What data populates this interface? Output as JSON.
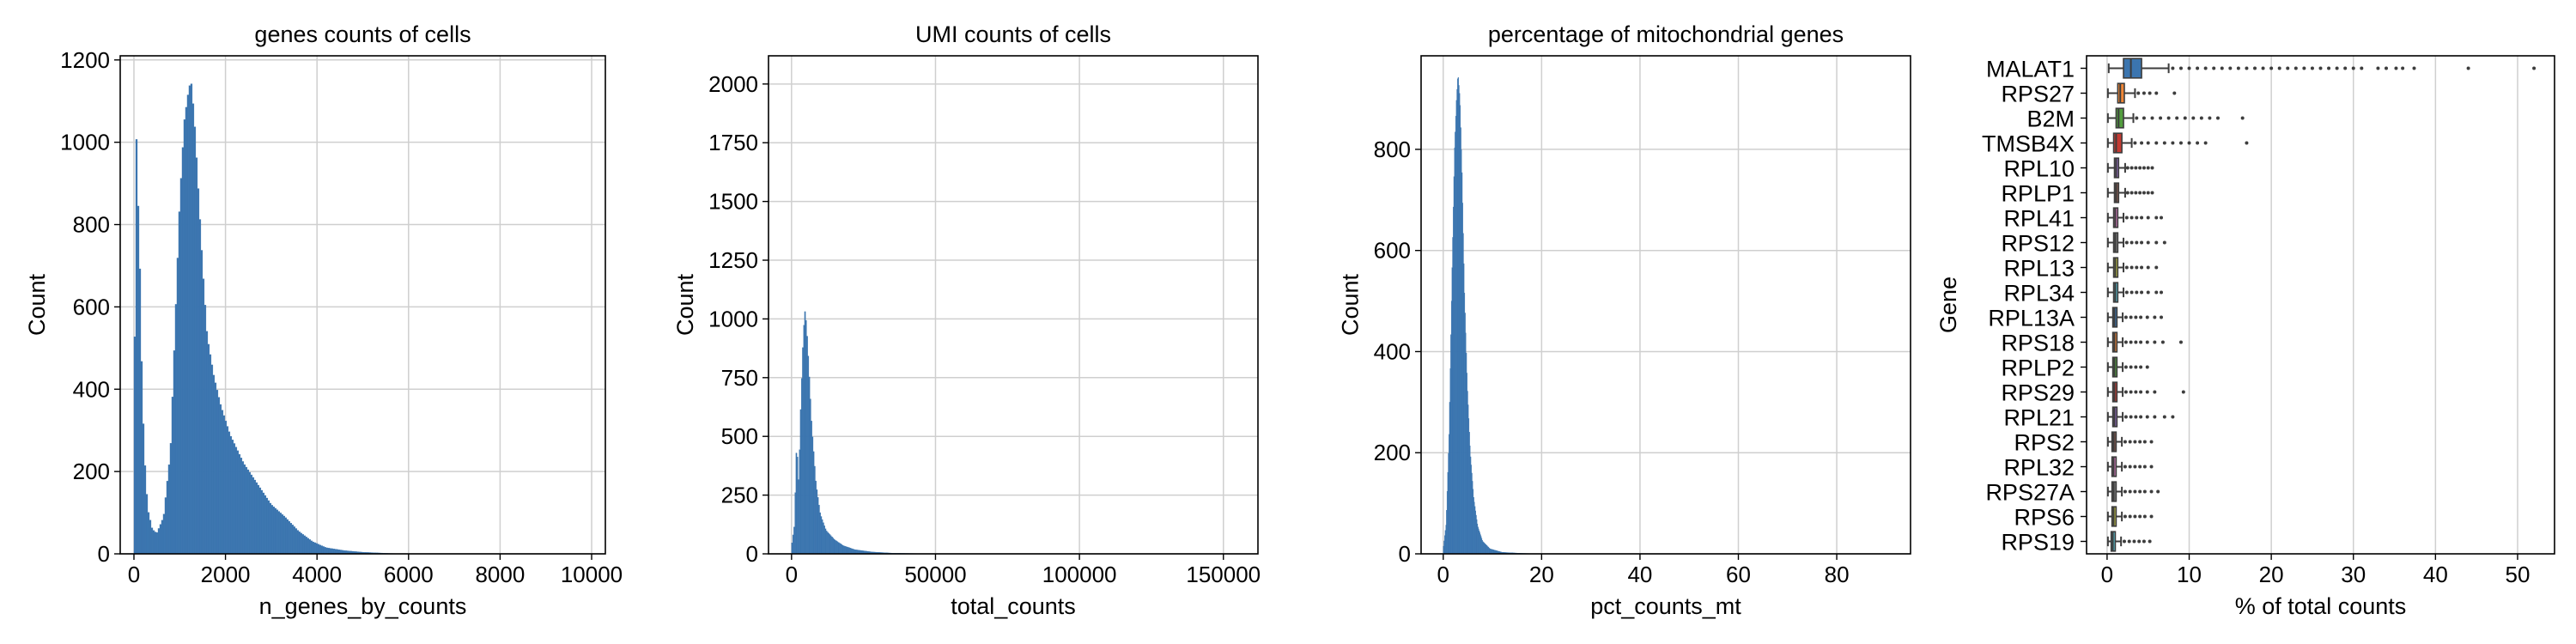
{
  "chart_data": [
    {
      "type": "histogram",
      "title": "genes counts of cells",
      "xlabel": "n_genes_by_counts",
      "ylabel": "Count",
      "xlim": [
        -300,
        10300
      ],
      "ylim": [
        0,
        1210
      ],
      "xticks": [
        0,
        2000,
        4000,
        6000,
        8000,
        10000
      ],
      "yticks": [
        0,
        200,
        400,
        600,
        800,
        1000,
        1200
      ],
      "grid": true,
      "color": "#3b75af",
      "profile": [
        [
          0,
          40
        ],
        [
          40,
          1080
        ],
        [
          80,
          900
        ],
        [
          130,
          700
        ],
        [
          180,
          400
        ],
        [
          230,
          240
        ],
        [
          300,
          110
        ],
        [
          400,
          60
        ],
        [
          500,
          50
        ],
        [
          650,
          90
        ],
        [
          800,
          250
        ],
        [
          900,
          550
        ],
        [
          1000,
          850
        ],
        [
          1100,
          1050
        ],
        [
          1200,
          1130
        ],
        [
          1250,
          1150
        ],
        [
          1320,
          1060
        ],
        [
          1400,
          900
        ],
        [
          1500,
          700
        ],
        [
          1600,
          530
        ],
        [
          1750,
          430
        ],
        [
          1900,
          360
        ],
        [
          2100,
          290
        ],
        [
          2400,
          220
        ],
        [
          2700,
          170
        ],
        [
          3000,
          120
        ],
        [
          3300,
          90
        ],
        [
          3600,
          55
        ],
        [
          3900,
          30
        ],
        [
          4200,
          15
        ],
        [
          4600,
          8
        ],
        [
          5000,
          4
        ],
        [
          5600,
          1
        ],
        [
          6000,
          0
        ]
      ]
    },
    {
      "type": "histogram",
      "title": "UMI counts of cells",
      "xlabel": "total_counts",
      "ylabel": "Count",
      "xlim": [
        -8000,
        162000
      ],
      "ylim": [
        0,
        2120
      ],
      "xticks": [
        0,
        50000,
        100000,
        150000
      ],
      "yticks": [
        0,
        250,
        500,
        750,
        1000,
        1250,
        1500,
        1750,
        2000
      ],
      "grid": true,
      "color": "#3b75af",
      "profile": [
        [
          0,
          30
        ],
        [
          1000,
          120
        ],
        [
          1800,
          480
        ],
        [
          2500,
          300
        ],
        [
          3200,
          620
        ],
        [
          4000,
          900
        ],
        [
          4600,
          1040
        ],
        [
          5200,
          980
        ],
        [
          6000,
          800
        ],
        [
          7000,
          550
        ],
        [
          8500,
          300
        ],
        [
          10000,
          170
        ],
        [
          12000,
          100
        ],
        [
          15000,
          60
        ],
        [
          18000,
          35
        ],
        [
          22000,
          18
        ],
        [
          28000,
          8
        ],
        [
          35000,
          3
        ],
        [
          45000,
          1
        ],
        [
          60000,
          0
        ]
      ]
    },
    {
      "type": "histogram",
      "title": "percentage of mitochondrial genes",
      "xlabel": "pct_counts_mt",
      "ylabel": "Count",
      "xlim": [
        -4.5,
        95
      ],
      "ylim": [
        0,
        985
      ],
      "xticks": [
        0,
        20,
        40,
        60,
        80
      ],
      "yticks": [
        0,
        200,
        400,
        600,
        800
      ],
      "grid": true,
      "color": "#3b75af",
      "profile": [
        [
          0,
          10
        ],
        [
          0.6,
          60
        ],
        [
          1.2,
          240
        ],
        [
          1.8,
          560
        ],
        [
          2.3,
          800
        ],
        [
          2.7,
          900
        ],
        [
          3.0,
          950
        ],
        [
          3.4,
          900
        ],
        [
          3.8,
          760
        ],
        [
          4.3,
          520
        ],
        [
          4.9,
          330
        ],
        [
          5.5,
          200
        ],
        [
          6.2,
          110
        ],
        [
          7.0,
          55
        ],
        [
          8.0,
          25
        ],
        [
          9.5,
          10
        ],
        [
          12,
          3
        ],
        [
          16,
          1
        ],
        [
          20,
          0
        ]
      ]
    },
    {
      "type": "box",
      "title": "",
      "xlabel": "% of total counts",
      "ylabel": "Gene",
      "xlim": [
        -2.5,
        54.5
      ],
      "xticks": [
        0,
        10,
        20,
        30,
        40,
        50
      ],
      "grid": true,
      "genes": [
        {
          "name": "MALAT1",
          "color": "#3b75af",
          "whislo": 0.2,
          "q1": 2.0,
          "med": 2.9,
          "q3": 4.2,
          "whishi": 7.5,
          "fliers": [
            8,
            9,
            10,
            11,
            12,
            13,
            14,
            15,
            16,
            17,
            18,
            19,
            20,
            21,
            22,
            23,
            24,
            25,
            26,
            27,
            28,
            29,
            30,
            31,
            33,
            34,
            35.2,
            36,
            37.4,
            44,
            52
          ]
        },
        {
          "name": "RPS27",
          "color": "#ef8636",
          "whislo": 0.1,
          "q1": 1.3,
          "med": 1.6,
          "q3": 2.1,
          "whishi": 3.4,
          "fliers": [
            3.8,
            4.5,
            5.2,
            6.0,
            8.2
          ]
        },
        {
          "name": "B2M",
          "color": "#529e3e",
          "whislo": 0.1,
          "q1": 1.1,
          "med": 1.4,
          "q3": 2.0,
          "whishi": 3.2,
          "fliers": [
            3.6,
            4.5,
            5.5,
            6.5,
            7.5,
            8.5,
            9.5,
            10.5,
            11.5,
            12.5,
            13.5,
            16.5
          ]
        },
        {
          "name": "TMSB4X",
          "color": "#c53a32",
          "whislo": 0.1,
          "q1": 0.8,
          "med": 1.1,
          "q3": 1.8,
          "whishi": 3.0,
          "fliers": [
            3.4,
            4.2,
            5.0,
            6.0,
            7.0,
            8.0,
            9.0,
            10.0,
            11.0,
            12.0,
            17.0
          ]
        },
        {
          "name": "RPL10",
          "color": "#8d69b8",
          "whislo": 0.1,
          "q1": 0.9,
          "med": 1.1,
          "q3": 1.4,
          "whishi": 2.2,
          "fliers": [
            2.5,
            3.0,
            3.5,
            4.0,
            4.5,
            5.0,
            5.5
          ]
        },
        {
          "name": "RPLP1",
          "color": "#84584e",
          "whislo": 0.1,
          "q1": 0.9,
          "med": 1.1,
          "q3": 1.4,
          "whishi": 2.2,
          "fliers": [
            2.5,
            3.0,
            3.5,
            4.0,
            4.5,
            5.0,
            5.5
          ]
        },
        {
          "name": "RPL41",
          "color": "#d57dbe",
          "whislo": 0.1,
          "q1": 0.8,
          "med": 1.0,
          "q3": 1.3,
          "whishi": 2.0,
          "fliers": [
            2.4,
            3.0,
            3.6,
            4.2,
            5.0,
            6.0,
            6.6
          ]
        },
        {
          "name": "RPS12",
          "color": "#7f7f7f",
          "whislo": 0.1,
          "q1": 0.8,
          "med": 1.0,
          "q3": 1.3,
          "whishi": 2.0,
          "fliers": [
            2.4,
            3.0,
            3.6,
            4.2,
            5.0,
            6.0,
            7.0
          ]
        },
        {
          "name": "RPL13",
          "color": "#bcbd45",
          "whislo": 0.1,
          "q1": 0.8,
          "med": 1.0,
          "q3": 1.3,
          "whishi": 2.0,
          "fliers": [
            2.4,
            3.0,
            3.6,
            4.2,
            5.0,
            6.0
          ]
        },
        {
          "name": "RPL34",
          "color": "#58bbcc",
          "whislo": 0.1,
          "q1": 0.8,
          "med": 1.0,
          "q3": 1.3,
          "whishi": 2.0,
          "fliers": [
            2.4,
            3.0,
            3.6,
            4.2,
            5.0,
            6.0,
            6.6
          ]
        },
        {
          "name": "RPL13A",
          "color": "#3b75af",
          "whislo": 0.1,
          "q1": 0.7,
          "med": 0.9,
          "q3": 1.2,
          "whishi": 1.9,
          "fliers": [
            2.3,
            2.9,
            3.5,
            4.1,
            4.9,
            5.8,
            6.6
          ]
        },
        {
          "name": "RPS18",
          "color": "#ef8636",
          "whislo": 0.1,
          "q1": 0.7,
          "med": 0.9,
          "q3": 1.2,
          "whishi": 1.9,
          "fliers": [
            2.3,
            2.9,
            3.5,
            4.1,
            4.9,
            5.8,
            6.8,
            9.0
          ]
        },
        {
          "name": "RPLP2",
          "color": "#529e3e",
          "whislo": 0.1,
          "q1": 0.7,
          "med": 0.9,
          "q3": 1.2,
          "whishi": 1.9,
          "fliers": [
            2.3,
            2.9,
            3.5,
            4.1,
            4.9
          ]
        },
        {
          "name": "RPS29",
          "color": "#c53a32",
          "whislo": 0.1,
          "q1": 0.7,
          "med": 0.9,
          "q3": 1.2,
          "whishi": 1.9,
          "fliers": [
            2.3,
            2.9,
            3.5,
            4.1,
            4.9,
            5.8,
            9.3
          ]
        },
        {
          "name": "RPL21",
          "color": "#8d69b8",
          "whislo": 0.1,
          "q1": 0.7,
          "med": 0.9,
          "q3": 1.2,
          "whishi": 1.9,
          "fliers": [
            2.3,
            2.9,
            3.5,
            4.1,
            4.9,
            5.8,
            7.0,
            8.0
          ]
        },
        {
          "name": "RPS2",
          "color": "#84584e",
          "whislo": 0.1,
          "q1": 0.6,
          "med": 0.8,
          "q3": 1.1,
          "whishi": 1.8,
          "fliers": [
            2.2,
            2.8,
            3.4,
            4.0,
            4.6,
            5.4
          ]
        },
        {
          "name": "RPL32",
          "color": "#d57dbe",
          "whislo": 0.1,
          "q1": 0.6,
          "med": 0.8,
          "q3": 1.1,
          "whishi": 1.8,
          "fliers": [
            2.2,
            2.8,
            3.4,
            4.0,
            4.6,
            5.4
          ]
        },
        {
          "name": "RPS27A",
          "color": "#7f7f7f",
          "whislo": 0.1,
          "q1": 0.6,
          "med": 0.8,
          "q3": 1.1,
          "whishi": 1.8,
          "fliers": [
            2.2,
            2.8,
            3.4,
            4.0,
            4.6,
            5.4,
            6.2
          ]
        },
        {
          "name": "RPS6",
          "color": "#bcbd45",
          "whislo": 0.1,
          "q1": 0.6,
          "med": 0.8,
          "q3": 1.1,
          "whishi": 1.8,
          "fliers": [
            2.2,
            2.8,
            3.4,
            4.0,
            4.6,
            5.4
          ]
        },
        {
          "name": "RPS19",
          "color": "#58bbcc",
          "whislo": 0.1,
          "q1": 0.5,
          "med": 0.7,
          "q3": 1.0,
          "whishi": 1.7,
          "fliers": [
            2.1,
            2.7,
            3.3,
            3.9,
            4.5,
            5.2
          ]
        }
      ]
    }
  ]
}
